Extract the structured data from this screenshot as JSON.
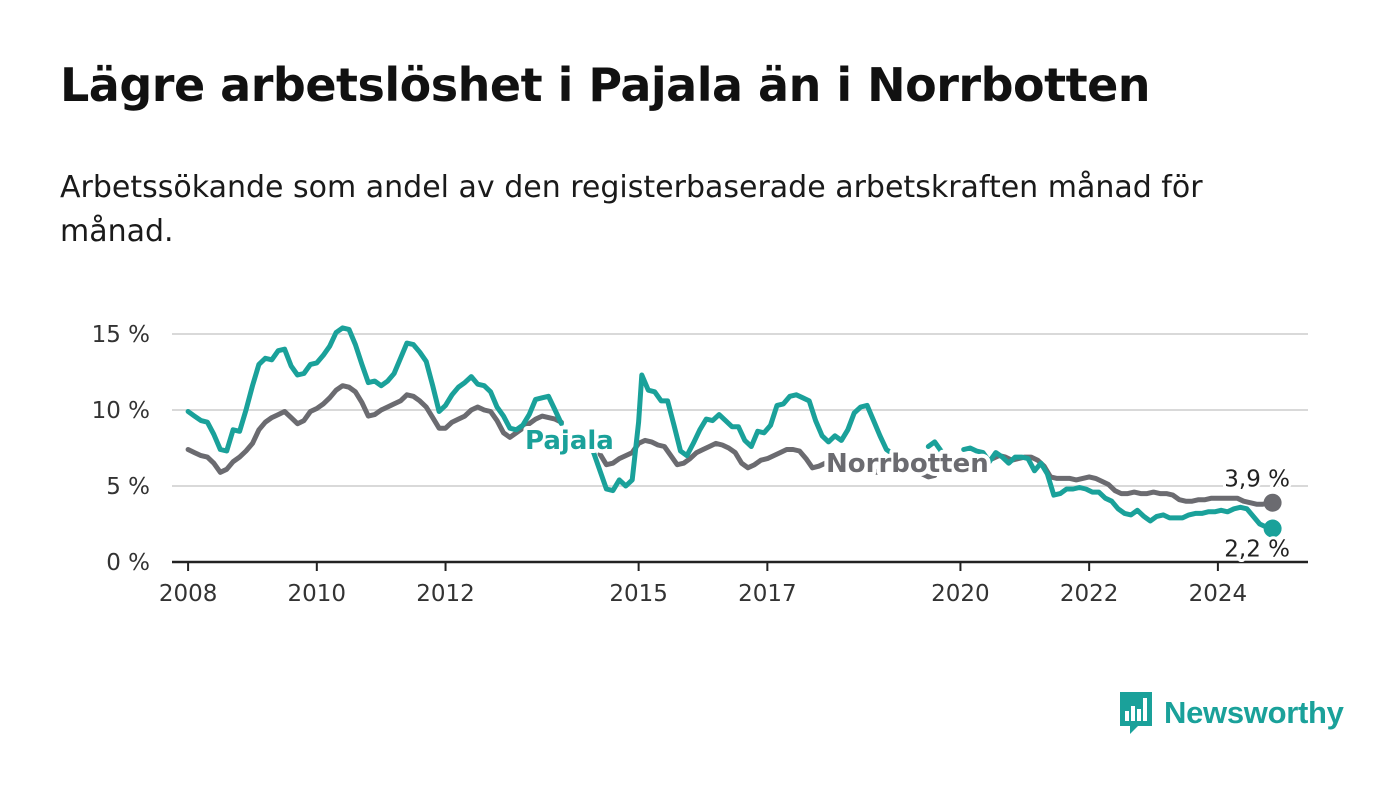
{
  "title": "Lägre arbetslöshet i Pajala än i Norrbotten",
  "subtitle": "Arbetssökande som andel av den registerbaserade arbetskraften månad för månad.",
  "brand": {
    "name": "Newsworthy",
    "logo_icon": "bar-chart-speech-bubble-icon",
    "color": "#1aa19a"
  },
  "chart_data": {
    "type": "line",
    "x_axis": {
      "type": "time",
      "range": [
        2007.75,
        2025.4
      ],
      "tick_labels": [
        "2008",
        "2010",
        "2012",
        "2015",
        "2017",
        "2020",
        "2022",
        "2024"
      ],
      "tick_values": [
        2008,
        2010,
        2012,
        2015,
        2017,
        2020,
        2022,
        2024
      ]
    },
    "y_axis": {
      "range": [
        0,
        15
      ],
      "tick_values": [
        0,
        5,
        10,
        15
      ],
      "tick_labels": [
        "0 %",
        "5 %",
        "10 %",
        "15 %"
      ],
      "grid": true
    },
    "series": [
      {
        "name": "Pajala",
        "color": "#1aa19a",
        "end_value_label": "2,2 %",
        "points": [
          [
            2008.0,
            9.9
          ],
          [
            2008.1,
            9.6
          ],
          [
            2008.2,
            9.3
          ],
          [
            2008.3,
            9.2
          ],
          [
            2008.4,
            8.4
          ],
          [
            2008.5,
            7.4
          ],
          [
            2008.6,
            7.3
          ],
          [
            2008.7,
            8.7
          ],
          [
            2008.8,
            8.6
          ],
          [
            2008.9,
            10.0
          ],
          [
            2009.0,
            11.6
          ],
          [
            2009.1,
            13.0
          ],
          [
            2009.2,
            13.4
          ],
          [
            2009.3,
            13.3
          ],
          [
            2009.4,
            13.9
          ],
          [
            2009.5,
            14.0
          ],
          [
            2009.6,
            12.9
          ],
          [
            2009.7,
            12.3
          ],
          [
            2009.8,
            12.4
          ],
          [
            2009.9,
            13.0
          ],
          [
            2010.0,
            13.1
          ],
          [
            2010.1,
            13.6
          ],
          [
            2010.2,
            14.2
          ],
          [
            2010.3,
            15.1
          ],
          [
            2010.4,
            15.4
          ],
          [
            2010.5,
            15.3
          ],
          [
            2010.6,
            14.3
          ],
          [
            2010.7,
            13.0
          ],
          [
            2010.8,
            11.8
          ],
          [
            2010.9,
            11.9
          ],
          [
            2011.0,
            11.6
          ],
          [
            2011.1,
            11.9
          ],
          [
            2011.2,
            12.4
          ],
          [
            2011.3,
            13.4
          ],
          [
            2011.4,
            14.4
          ],
          [
            2011.5,
            14.3
          ],
          [
            2011.6,
            13.8
          ],
          [
            2011.7,
            13.2
          ],
          [
            2011.8,
            11.6
          ],
          [
            2011.9,
            9.9
          ],
          [
            2012.0,
            10.3
          ],
          [
            2012.1,
            11.0
          ],
          [
            2012.2,
            11.5
          ],
          [
            2012.3,
            11.8
          ],
          [
            2012.4,
            12.2
          ],
          [
            2012.5,
            11.7
          ],
          [
            2012.6,
            11.6
          ],
          [
            2012.7,
            11.2
          ],
          [
            2012.8,
            10.2
          ],
          [
            2012.9,
            9.6
          ],
          [
            2013.0,
            8.8
          ],
          [
            2013.1,
            8.7
          ],
          [
            2013.2,
            9.0
          ],
          [
            2013.3,
            9.7
          ],
          [
            2013.4,
            10.7
          ],
          [
            2013.5,
            10.8
          ],
          [
            2013.6,
            10.9
          ],
          [
            2013.7,
            10.0
          ],
          [
            2013.8,
            9.1
          ],
          [
            2014.3,
            7.2
          ],
          [
            2014.4,
            6.0
          ],
          [
            2014.5,
            4.8
          ],
          [
            2014.6,
            4.7
          ],
          [
            2014.7,
            5.4
          ],
          [
            2014.8,
            5.0
          ],
          [
            2014.9,
            5.4
          ],
          [
            2015.0,
            9.2
          ],
          [
            2015.05,
            12.3
          ],
          [
            2015.15,
            11.3
          ],
          [
            2015.25,
            11.2
          ],
          [
            2015.35,
            10.6
          ],
          [
            2015.45,
            10.6
          ],
          [
            2015.55,
            9.0
          ],
          [
            2015.65,
            7.3
          ],
          [
            2015.75,
            7.0
          ],
          [
            2015.85,
            7.8
          ],
          [
            2015.95,
            8.7
          ],
          [
            2016.05,
            9.4
          ],
          [
            2016.15,
            9.3
          ],
          [
            2016.25,
            9.7
          ],
          [
            2016.35,
            9.3
          ],
          [
            2016.45,
            8.9
          ],
          [
            2016.55,
            8.9
          ],
          [
            2016.65,
            8.0
          ],
          [
            2016.75,
            7.6
          ],
          [
            2016.85,
            8.6
          ],
          [
            2016.95,
            8.5
          ],
          [
            2017.05,
            9.0
          ],
          [
            2017.15,
            10.3
          ],
          [
            2017.25,
            10.4
          ],
          [
            2017.35,
            10.9
          ],
          [
            2017.45,
            11.0
          ],
          [
            2017.55,
            10.8
          ],
          [
            2017.65,
            10.6
          ],
          [
            2017.75,
            9.3
          ],
          [
            2017.85,
            8.3
          ],
          [
            2017.95,
            7.9
          ],
          [
            2018.05,
            8.3
          ],
          [
            2018.15,
            8.0
          ],
          [
            2018.25,
            8.7
          ],
          [
            2018.35,
            9.8
          ],
          [
            2018.45,
            10.2
          ],
          [
            2018.55,
            10.3
          ],
          [
            2018.65,
            9.3
          ],
          [
            2018.75,
            8.3
          ],
          [
            2018.85,
            7.4
          ],
          [
            2018.95,
            7.1
          ],
          [
            2019.5,
            7.6
          ],
          [
            2019.6,
            7.9
          ],
          [
            2019.7,
            7.3
          ],
          [
            2020.05,
            7.4
          ],
          [
            2020.15,
            7.5
          ],
          [
            2020.25,
            7.3
          ],
          [
            2020.35,
            7.2
          ],
          [
            2020.45,
            6.6
          ],
          [
            2020.55,
            7.2
          ],
          [
            2020.65,
            6.9
          ],
          [
            2020.75,
            6.5
          ],
          [
            2020.85,
            6.9
          ],
          [
            2020.95,
            6.9
          ],
          [
            2021.05,
            6.8
          ],
          [
            2021.15,
            6.0
          ],
          [
            2021.25,
            6.5
          ],
          [
            2021.35,
            5.8
          ],
          [
            2021.45,
            4.4
          ],
          [
            2021.55,
            4.5
          ],
          [
            2021.65,
            4.8
          ],
          [
            2021.75,
            4.8
          ],
          [
            2021.85,
            4.9
          ],
          [
            2021.95,
            4.8
          ],
          [
            2022.05,
            4.6
          ],
          [
            2022.15,
            4.6
          ],
          [
            2022.25,
            4.2
          ],
          [
            2022.35,
            4.0
          ],
          [
            2022.45,
            3.5
          ],
          [
            2022.55,
            3.2
          ],
          [
            2022.65,
            3.1
          ],
          [
            2022.75,
            3.4
          ],
          [
            2022.85,
            3.0
          ],
          [
            2022.95,
            2.7
          ],
          [
            2023.05,
            3.0
          ],
          [
            2023.15,
            3.1
          ],
          [
            2023.25,
            2.9
          ],
          [
            2023.35,
            2.9
          ],
          [
            2023.45,
            2.9
          ],
          [
            2023.55,
            3.1
          ],
          [
            2023.65,
            3.2
          ],
          [
            2023.75,
            3.2
          ],
          [
            2023.85,
            3.3
          ],
          [
            2023.95,
            3.3
          ],
          [
            2024.05,
            3.4
          ],
          [
            2024.15,
            3.3
          ],
          [
            2024.25,
            3.5
          ],
          [
            2024.35,
            3.6
          ],
          [
            2024.45,
            3.5
          ],
          [
            2024.55,
            3.0
          ],
          [
            2024.65,
            2.5
          ],
          [
            2024.75,
            2.3
          ],
          [
            2024.85,
            2.2
          ]
        ]
      },
      {
        "name": "Norrbotten",
        "color": "#6b6b70",
        "end_value_label": "3,9 %",
        "points": [
          [
            2008.0,
            7.4
          ],
          [
            2008.1,
            7.2
          ],
          [
            2008.2,
            7.0
          ],
          [
            2008.3,
            6.9
          ],
          [
            2008.4,
            6.5
          ],
          [
            2008.5,
            5.9
          ],
          [
            2008.6,
            6.1
          ],
          [
            2008.7,
            6.6
          ],
          [
            2008.8,
            6.9
          ],
          [
            2008.9,
            7.3
          ],
          [
            2009.0,
            7.8
          ],
          [
            2009.1,
            8.7
          ],
          [
            2009.2,
            9.2
          ],
          [
            2009.3,
            9.5
          ],
          [
            2009.4,
            9.7
          ],
          [
            2009.5,
            9.9
          ],
          [
            2009.6,
            9.5
          ],
          [
            2009.7,
            9.1
          ],
          [
            2009.8,
            9.3
          ],
          [
            2009.9,
            9.9
          ],
          [
            2010.0,
            10.1
          ],
          [
            2010.1,
            10.4
          ],
          [
            2010.2,
            10.8
          ],
          [
            2010.3,
            11.3
          ],
          [
            2010.4,
            11.6
          ],
          [
            2010.5,
            11.5
          ],
          [
            2010.6,
            11.2
          ],
          [
            2010.7,
            10.5
          ],
          [
            2010.8,
            9.6
          ],
          [
            2010.9,
            9.7
          ],
          [
            2011.0,
            10.0
          ],
          [
            2011.1,
            10.2
          ],
          [
            2011.2,
            10.4
          ],
          [
            2011.3,
            10.6
          ],
          [
            2011.4,
            11.0
          ],
          [
            2011.5,
            10.9
          ],
          [
            2011.6,
            10.6
          ],
          [
            2011.7,
            10.2
          ],
          [
            2011.8,
            9.5
          ],
          [
            2011.9,
            8.8
          ],
          [
            2012.0,
            8.8
          ],
          [
            2012.1,
            9.2
          ],
          [
            2012.2,
            9.4
          ],
          [
            2012.3,
            9.6
          ],
          [
            2012.4,
            10.0
          ],
          [
            2012.5,
            10.2
          ],
          [
            2012.6,
            10.0
          ],
          [
            2012.7,
            9.9
          ],
          [
            2012.8,
            9.3
          ],
          [
            2012.9,
            8.5
          ],
          [
            2013.0,
            8.2
          ],
          [
            2013.1,
            8.5
          ],
          [
            2013.2,
            8.8
          ],
          [
            2013.3,
            9.1
          ],
          [
            2013.4,
            9.4
          ],
          [
            2013.5,
            9.6
          ],
          [
            2013.6,
            9.5
          ],
          [
            2013.7,
            9.4
          ],
          [
            2013.8,
            9.2
          ],
          [
            2014.4,
            7.1
          ],
          [
            2014.5,
            6.4
          ],
          [
            2014.6,
            6.5
          ],
          [
            2014.7,
            6.8
          ],
          [
            2014.8,
            7.0
          ],
          [
            2014.9,
            7.2
          ],
          [
            2015.0,
            7.8
          ],
          [
            2015.1,
            8.0
          ],
          [
            2015.2,
            7.9
          ],
          [
            2015.3,
            7.7
          ],
          [
            2015.4,
            7.6
          ],
          [
            2015.5,
            7.0
          ],
          [
            2015.6,
            6.4
          ],
          [
            2015.7,
            6.5
          ],
          [
            2015.8,
            6.8
          ],
          [
            2015.9,
            7.2
          ],
          [
            2016.0,
            7.4
          ],
          [
            2016.1,
            7.6
          ],
          [
            2016.2,
            7.8
          ],
          [
            2016.3,
            7.7
          ],
          [
            2016.4,
            7.5
          ],
          [
            2016.5,
            7.2
          ],
          [
            2016.6,
            6.5
          ],
          [
            2016.7,
            6.2
          ],
          [
            2016.8,
            6.4
          ],
          [
            2016.9,
            6.7
          ],
          [
            2017.0,
            6.8
          ],
          [
            2017.1,
            7.0
          ],
          [
            2017.2,
            7.2
          ],
          [
            2017.3,
            7.4
          ],
          [
            2017.4,
            7.4
          ],
          [
            2017.5,
            7.3
          ],
          [
            2017.6,
            6.8
          ],
          [
            2017.7,
            6.2
          ],
          [
            2017.8,
            6.3
          ],
          [
            2017.9,
            6.5
          ],
          [
            2018.6,
            6.2
          ],
          [
            2018.7,
            5.9
          ],
          [
            2018.8,
            5.9
          ],
          [
            2019.4,
            5.8
          ],
          [
            2019.5,
            5.6
          ],
          [
            2019.6,
            5.7
          ],
          [
            2020.5,
            6.8
          ],
          [
            2020.6,
            7.0
          ],
          [
            2020.7,
            6.9
          ],
          [
            2020.8,
            6.7
          ],
          [
            2020.9,
            6.8
          ],
          [
            2021.0,
            6.9
          ],
          [
            2021.1,
            6.9
          ],
          [
            2021.2,
            6.7
          ],
          [
            2021.3,
            6.3
          ],
          [
            2021.4,
            5.6
          ],
          [
            2021.5,
            5.5
          ],
          [
            2021.6,
            5.5
          ],
          [
            2021.7,
            5.5
          ],
          [
            2021.8,
            5.4
          ],
          [
            2021.9,
            5.5
          ],
          [
            2022.0,
            5.6
          ],
          [
            2022.1,
            5.5
          ],
          [
            2022.2,
            5.3
          ],
          [
            2022.3,
            5.1
          ],
          [
            2022.4,
            4.7
          ],
          [
            2022.5,
            4.5
          ],
          [
            2022.6,
            4.5
          ],
          [
            2022.7,
            4.6
          ],
          [
            2022.8,
            4.5
          ],
          [
            2022.9,
            4.5
          ],
          [
            2023.0,
            4.6
          ],
          [
            2023.1,
            4.5
          ],
          [
            2023.2,
            4.5
          ],
          [
            2023.3,
            4.4
          ],
          [
            2023.4,
            4.1
          ],
          [
            2023.5,
            4.0
          ],
          [
            2023.6,
            4.0
          ],
          [
            2023.7,
            4.1
          ],
          [
            2023.8,
            4.1
          ],
          [
            2023.9,
            4.2
          ],
          [
            2024.0,
            4.2
          ],
          [
            2024.1,
            4.2
          ],
          [
            2024.2,
            4.2
          ],
          [
            2024.3,
            4.2
          ],
          [
            2024.4,
            4.0
          ],
          [
            2024.5,
            3.9
          ],
          [
            2024.6,
            3.8
          ],
          [
            2024.7,
            3.8
          ],
          [
            2024.85,
            3.9
          ]
        ]
      }
    ]
  }
}
